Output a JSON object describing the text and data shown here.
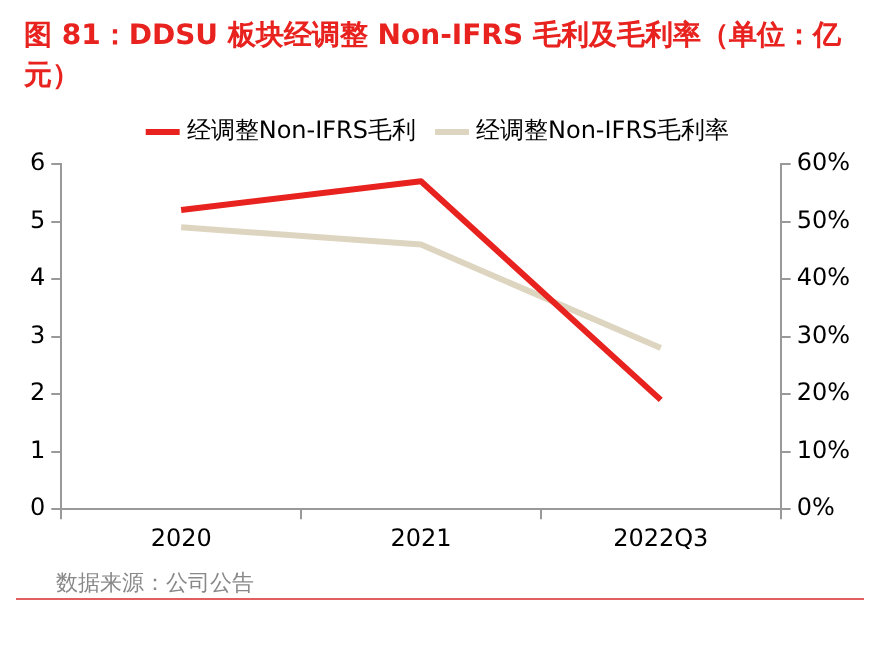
{
  "chart_data": {
    "type": "line",
    "title": "图 81：DDSU 板块经调整 Non-IFRS 毛利及毛利率（单位：亿元）",
    "categories": [
      "2020",
      "2021",
      "2022Q3"
    ],
    "series": [
      {
        "name": "经调整Non-IFRS毛利",
        "color": "#e8221e",
        "values": [
          5.2,
          5.7,
          1.9
        ]
      },
      {
        "name": "经调整Non-IFRS毛利率",
        "color": "#ddd5c0",
        "values": [
          49,
          46,
          28
        ],
        "axis": "y2"
      }
    ],
    "ylim": [
      0,
      6
    ],
    "yticks": [
      0,
      1,
      2,
      3,
      4,
      5,
      6
    ],
    "y2lim": [
      0,
      60
    ],
    "y2ticks": [
      {
        "value": 0,
        "label": "0%"
      },
      {
        "value": 10,
        "label": "10%"
      },
      {
        "value": 20,
        "label": "20%"
      },
      {
        "value": 30,
        "label": "30%"
      },
      {
        "value": 40,
        "label": "40%"
      },
      {
        "value": 50,
        "label": "50%"
      },
      {
        "value": 60,
        "label": "60%"
      }
    ],
    "grid": false,
    "legend": "top",
    "marker": "none",
    "line_style": "solid",
    "annotations": [
      "数据来源：公司公告"
    ]
  }
}
